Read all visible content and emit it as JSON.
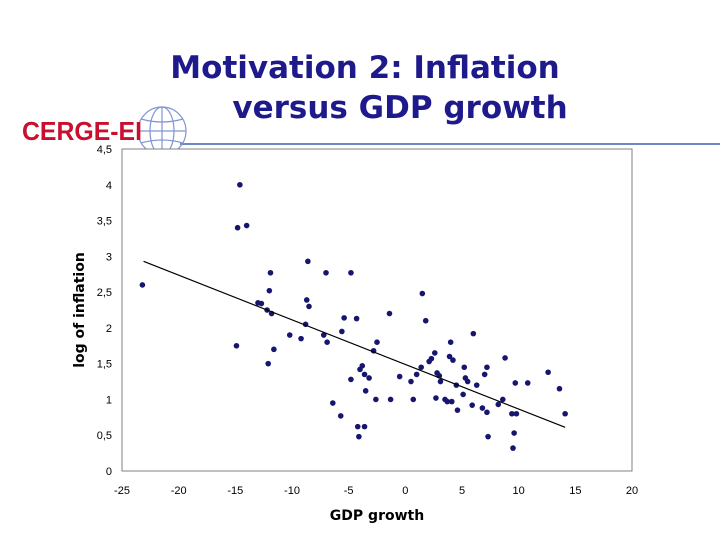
{
  "slide": {
    "title_line1": "Motivation 2: Inflation",
    "title_line2": "versus GDP growth",
    "logo_text": "CERGE-EI"
  },
  "colors": {
    "title": "#1f1a8c",
    "logo_red": "#c8102e",
    "logo_blue": "#8096d4",
    "points": "#16166e",
    "trendline": "#000000",
    "plot_border": "#808080",
    "rule": "#6f86c9"
  },
  "chart_data": {
    "type": "scatter",
    "title": "",
    "xlabel": "GDP growth",
    "ylabel": "log of inflation",
    "xlim": [
      -25,
      20
    ],
    "ylim": [
      0,
      4.5
    ],
    "xticks": [
      -25,
      -20,
      -15,
      -10,
      -5,
      0,
      5,
      10,
      15,
      20
    ],
    "xtick_labels": [
      "-25",
      "-20",
      "-15",
      "-10",
      "-5",
      "0",
      "5",
      "10",
      "15",
      "20"
    ],
    "yticks": [
      0,
      0.5,
      1,
      1.5,
      2,
      2.5,
      3,
      3.5,
      4,
      4.5
    ],
    "ytick_labels": [
      "0",
      "0,5",
      "1",
      "1,5",
      "2",
      "2,5",
      "3",
      "3,5",
      "4",
      "4,5"
    ],
    "grid": false,
    "legend": "none",
    "trendline": {
      "x": [
        -23.1,
        14.1
      ],
      "y": [
        2.93,
        0.61
      ]
    },
    "points": [
      [
        -23.2,
        2.6
      ],
      [
        -14.6,
        4.0
      ],
      [
        -14.0,
        3.43
      ],
      [
        -14.8,
        3.4
      ],
      [
        -14.9,
        1.75
      ],
      [
        -13.0,
        2.35
      ],
      [
        -12.7,
        2.34
      ],
      [
        -12.2,
        2.25
      ],
      [
        -11.9,
        2.77
      ],
      [
        -12.0,
        2.52
      ],
      [
        -11.8,
        2.2
      ],
      [
        -11.6,
        1.7
      ],
      [
        -12.1,
        1.5
      ],
      [
        -8.6,
        2.93
      ],
      [
        -8.7,
        2.39
      ],
      [
        -8.5,
        2.3
      ],
      [
        -8.8,
        2.05
      ],
      [
        -10.2,
        1.9
      ],
      [
        -9.2,
        1.85
      ],
      [
        -7.0,
        2.77
      ],
      [
        -4.8,
        2.77
      ],
      [
        -7.2,
        1.9
      ],
      [
        -6.9,
        1.8
      ],
      [
        -5.4,
        2.14
      ],
      [
        -4.3,
        2.13
      ],
      [
        -5.6,
        1.95
      ],
      [
        -2.5,
        1.8
      ],
      [
        -6.4,
        0.95
      ],
      [
        -5.7,
        0.77
      ],
      [
        -4.8,
        1.28
      ],
      [
        -3.8,
        1.47
      ],
      [
        -3.6,
        1.35
      ],
      [
        -4.0,
        1.42
      ],
      [
        -3.2,
        1.3
      ],
      [
        -2.8,
        1.68
      ],
      [
        -3.5,
        1.12
      ],
      [
        -2.6,
        1.0
      ],
      [
        -1.3,
        1.0
      ],
      [
        -4.2,
        0.62
      ],
      [
        -3.6,
        0.62
      ],
      [
        -4.1,
        0.48
      ],
      [
        -1.4,
        2.2
      ],
      [
        -0.5,
        1.32
      ],
      [
        0.5,
        1.25
      ],
      [
        1.0,
        1.35
      ],
      [
        0.7,
        1.0
      ],
      [
        1.4,
        1.45
      ],
      [
        1.5,
        2.48
      ],
      [
        1.8,
        2.1
      ],
      [
        2.1,
        1.53
      ],
      [
        2.3,
        1.57
      ],
      [
        2.6,
        1.65
      ],
      [
        2.8,
        1.37
      ],
      [
        3.0,
        1.33
      ],
      [
        3.1,
        1.25
      ],
      [
        3.5,
        1.0
      ],
      [
        3.7,
        0.97
      ],
      [
        2.7,
        1.02
      ],
      [
        3.9,
        1.6
      ],
      [
        4.2,
        1.55
      ],
      [
        4.0,
        1.8
      ],
      [
        4.5,
        1.2
      ],
      [
        4.1,
        0.97
      ],
      [
        4.6,
        0.85
      ],
      [
        5.1,
        1.07
      ],
      [
        5.3,
        1.3
      ],
      [
        5.2,
        1.45
      ],
      [
        5.5,
        1.25
      ],
      [
        6.0,
        1.92
      ],
      [
        6.3,
        1.2
      ],
      [
        5.9,
        0.92
      ],
      [
        6.8,
        0.88
      ],
      [
        7.2,
        0.82
      ],
      [
        7.0,
        1.35
      ],
      [
        7.2,
        1.45
      ],
      [
        7.3,
        0.48
      ],
      [
        8.2,
        0.93
      ],
      [
        8.6,
        1.0
      ],
      [
        8.8,
        1.58
      ],
      [
        9.4,
        0.8
      ],
      [
        9.8,
        0.8
      ],
      [
        9.7,
        1.23
      ],
      [
        9.6,
        0.53
      ],
      [
        9.5,
        0.32
      ],
      [
        10.8,
        1.23
      ],
      [
        12.6,
        1.38
      ],
      [
        13.6,
        1.15
      ],
      [
        14.1,
        0.8
      ]
    ]
  }
}
